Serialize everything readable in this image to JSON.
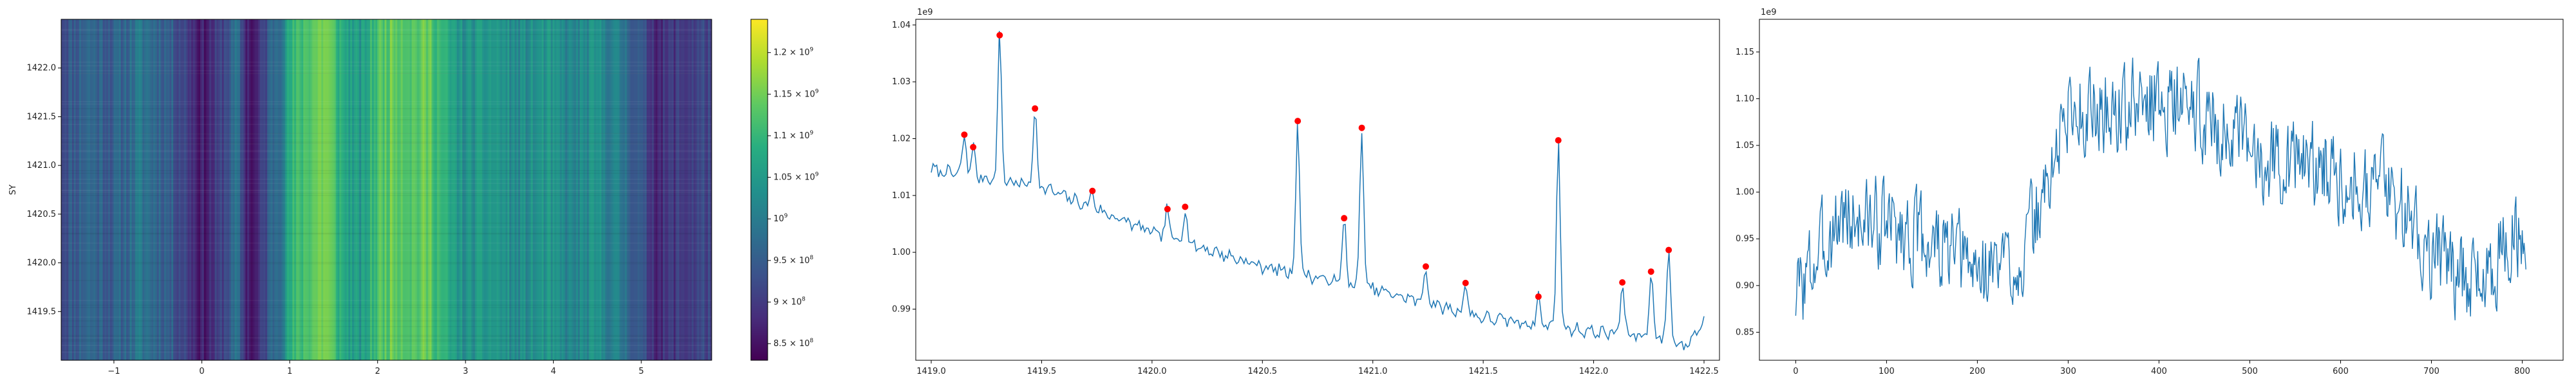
{
  "chart_data": [
    {
      "type": "heatmap",
      "ylabel": "SY",
      "xlim": [
        -1.6,
        5.8
      ],
      "ylim": [
        1419.0,
        1422.5
      ],
      "x_ticks": [
        "−1",
        "0",
        "1",
        "2",
        "3",
        "4",
        "5"
      ],
      "x_tick_values": [
        -1,
        0,
        1,
        2,
        3,
        4,
        5
      ],
      "y_ticks": [
        "1419.5",
        "1420.0",
        "1420.5",
        "1421.0",
        "1421.5",
        "1422.0"
      ],
      "y_tick_values": [
        1419.5,
        1420.0,
        1420.5,
        1421.0,
        1421.5,
        1422.0
      ],
      "colormap": "viridis",
      "colorbar": {
        "range": [
          830000000.0,
          1240000000.0
        ],
        "ticks": [
          {
            "value": 1200000000.0,
            "base": "1.2 × 10",
            "exp": "9"
          },
          {
            "value": 1150000000.0,
            "base": "1.15 × 10",
            "exp": "9"
          },
          {
            "value": 1100000000.0,
            "base": "1.1 × 10",
            "exp": "9"
          },
          {
            "value": 1050000000.0,
            "base": "1.05 × 10",
            "exp": "9"
          },
          {
            "value": 1000000000.0,
            "base": "10",
            "exp": "9"
          },
          {
            "value": 950000000.0,
            "base": "9.5 × 10",
            "exp": "8"
          },
          {
            "value": 900000000.0,
            "base": "9 × 10",
            "exp": "8"
          },
          {
            "value": 850000000.0,
            "base": "8.5 × 10",
            "exp": "8"
          }
        ]
      },
      "column_profile": [
        [
          -1.6,
          0.93
        ],
        [
          -1.3,
          0.97
        ],
        [
          -1.0,
          0.95
        ],
        [
          -0.7,
          0.99
        ],
        [
          -0.4,
          0.96
        ],
        [
          -0.2,
          0.92
        ],
        [
          0.0,
          0.86
        ],
        [
          0.2,
          0.9
        ],
        [
          0.4,
          0.98
        ],
        [
          0.5,
          0.88
        ],
        [
          0.6,
          0.85
        ],
        [
          0.8,
          0.97
        ],
        [
          0.9,
          1.0
        ],
        [
          1.0,
          1.08
        ],
        [
          1.2,
          1.13
        ],
        [
          1.4,
          1.16
        ],
        [
          1.6,
          1.08
        ],
        [
          1.8,
          1.04
        ],
        [
          2.0,
          1.12
        ],
        [
          2.2,
          1.15
        ],
        [
          2.4,
          1.13
        ],
        [
          2.6,
          1.14
        ],
        [
          2.8,
          1.07
        ],
        [
          3.0,
          1.03
        ],
        [
          3.3,
          1.05
        ],
        [
          3.6,
          1.02
        ],
        [
          3.9,
          1.04
        ],
        [
          4.2,
          1.01
        ],
        [
          4.5,
          1.03
        ],
        [
          4.8,
          0.99
        ],
        [
          5.0,
          0.93
        ],
        [
          5.2,
          0.88
        ],
        [
          5.4,
          0.9
        ],
        [
          5.6,
          0.91
        ],
        [
          5.8,
          0.92
        ]
      ]
    },
    {
      "type": "line",
      "offset_label": "1e9",
      "xlim": [
        1418.93,
        1422.57
      ],
      "ylim": [
        0.981,
        1.041
      ],
      "x_ticks": [
        "1419.0",
        "1419.5",
        "1420.0",
        "1420.5",
        "1421.0",
        "1421.5",
        "1422.0",
        "1422.5"
      ],
      "x_tick_values": [
        1419.0,
        1419.5,
        1420.0,
        1420.5,
        1421.0,
        1421.5,
        1422.0,
        1422.5
      ],
      "y_ticks": [
        "0.99",
        "1.00",
        "1.01",
        "1.02",
        "1.03",
        "1.04"
      ],
      "y_tick_values": [
        0.99,
        1.0,
        1.01,
        1.02,
        1.03,
        1.04
      ],
      "line_color": "#1f77b4",
      "marker_color": "#ff0000",
      "baseline": [
        [
          1419.0,
          1.0145
        ],
        [
          1419.5,
          1.0115
        ],
        [
          1420.0,
          1.0035
        ],
        [
          1420.5,
          0.9975
        ],
        [
          1421.0,
          0.9935
        ],
        [
          1421.5,
          0.9885
        ],
        [
          1422.0,
          0.986
        ],
        [
          1422.3,
          0.985
        ],
        [
          1422.42,
          0.9835
        ],
        [
          1422.5,
          0.988
        ]
      ],
      "peaks": [
        {
          "x": 1419.15,
          "y": 1.0207
        },
        {
          "x": 1419.19,
          "y": 1.0185
        },
        {
          "x": 1419.31,
          "y": 1.0382
        },
        {
          "x": 1419.47,
          "y": 1.0253
        },
        {
          "x": 1419.73,
          "y": 1.0108
        },
        {
          "x": 1420.07,
          "y": 1.0076
        },
        {
          "x": 1420.15,
          "y": 1.008
        },
        {
          "x": 1420.66,
          "y": 1.0231
        },
        {
          "x": 1420.87,
          "y": 1.006
        },
        {
          "x": 1420.95,
          "y": 1.0219
        },
        {
          "x": 1421.24,
          "y": 0.9975
        },
        {
          "x": 1421.42,
          "y": 0.9946
        },
        {
          "x": 1421.75,
          "y": 0.9922
        },
        {
          "x": 1421.84,
          "y": 1.0197
        },
        {
          "x": 1422.13,
          "y": 0.9947
        },
        {
          "x": 1422.26,
          "y": 0.9966
        },
        {
          "x": 1422.34,
          "y": 1.0004
        }
      ]
    },
    {
      "type": "line",
      "offset_label": "1e9",
      "xlim": [
        -40,
        845
      ],
      "ylim": [
        0.82,
        1.185
      ],
      "x_ticks": [
        "0",
        "100",
        "200",
        "300",
        "400",
        "500",
        "600",
        "700",
        "800"
      ],
      "x_tick_values": [
        0,
        100,
        200,
        300,
        400,
        500,
        600,
        700,
        800
      ],
      "y_ticks": [
        "0.85",
        "0.90",
        "0.95",
        "1.00",
        "1.05",
        "1.10",
        "1.15"
      ],
      "y_tick_values": [
        0.85,
        0.9,
        0.95,
        1.0,
        1.05,
        1.1,
        1.15
      ],
      "line_color": "#1f77b4",
      "n_points": 805,
      "trend": [
        [
          0,
          0.89
        ],
        [
          50,
          0.975
        ],
        [
          100,
          0.965
        ],
        [
          150,
          0.945
        ],
        [
          200,
          0.915
        ],
        [
          250,
          0.93
        ],
        [
          275,
          1.0
        ],
        [
          300,
          1.09
        ],
        [
          350,
          1.085
        ],
        [
          400,
          1.1
        ],
        [
          450,
          1.085
        ],
        [
          500,
          1.04
        ],
        [
          550,
          1.035
        ],
        [
          600,
          1.02
        ],
        [
          650,
          1.01
        ],
        [
          700,
          0.935
        ],
        [
          750,
          0.9
        ],
        [
          780,
          0.94
        ],
        [
          800,
          0.95
        ],
        [
          805,
          0.93
        ]
      ]
    }
  ]
}
